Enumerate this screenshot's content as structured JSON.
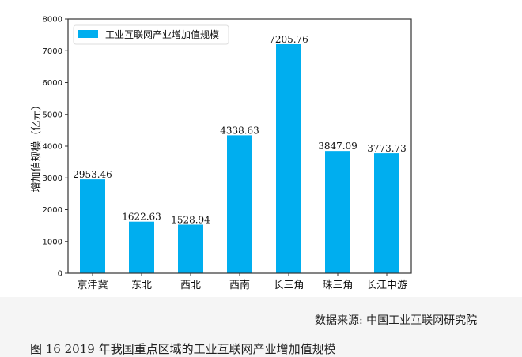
{
  "chart_data": {
    "type": "bar",
    "categories": [
      "京津冀",
      "东北",
      "西北",
      "西南",
      "长三角",
      "珠三角",
      "长江中游"
    ],
    "series": [
      {
        "name": "工业互联网产业增加值规模",
        "values": [
          2953.46,
          1622.63,
          1528.94,
          4338.63,
          7205.76,
          3847.09,
          3773.73
        ]
      }
    ],
    "data_labels": [
      "2953.46",
      "1622.63",
      "1528.94",
      "4338.63",
      "7205.76",
      "3847.09",
      "3773.73"
    ],
    "ylabel": "增加值规模（亿元）",
    "xlabel": "",
    "ylim": [
      0,
      8000
    ],
    "yticks": [
      0,
      1000,
      2000,
      3000,
      4000,
      5000,
      6000,
      7000,
      8000
    ],
    "legend_position": "top-left",
    "grid": false,
    "bar_color": "#00aeef"
  },
  "source": "数据来源: 中国工业互联网研究院",
  "caption": "图 16   2019 年我国重点区域的工业互联网产业增加值规模"
}
